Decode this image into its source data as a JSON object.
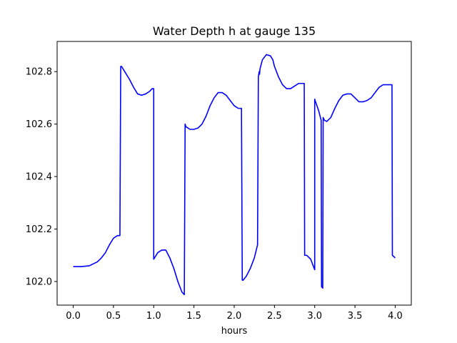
{
  "chart_data": {
    "type": "line",
    "title": "Water Depth h at gauge 135",
    "xlabel": "hours",
    "ylabel": "",
    "xlim": [
      -0.2,
      4.2
    ],
    "ylim": [
      101.91,
      102.915
    ],
    "xticks": [
      0.0,
      0.5,
      1.0,
      1.5,
      2.0,
      2.5,
      3.0,
      3.5,
      4.0
    ],
    "xtick_labels": [
      "0.0",
      "0.5",
      "1.0",
      "1.5",
      "2.0",
      "2.5",
      "3.0",
      "3.5",
      "4.0"
    ],
    "yticks": [
      102.0,
      102.2,
      102.4,
      102.6,
      102.8
    ],
    "ytick_labels": [
      "102.0",
      "102.2",
      "102.4",
      "102.6",
      "102.8"
    ],
    "grid": false,
    "legend": "none",
    "series": [
      {
        "color": "#0000ff",
        "x": [
          0.0,
          0.1,
          0.2,
          0.3,
          0.35,
          0.4,
          0.45,
          0.5,
          0.55,
          0.58,
          0.59,
          0.6,
          0.62,
          0.65,
          0.7,
          0.75,
          0.8,
          0.85,
          0.9,
          0.95,
          0.98,
          1.0,
          1.0,
          1.01,
          1.05,
          1.1,
          1.15,
          1.2,
          1.25,
          1.3,
          1.35,
          1.38,
          1.39,
          1.4,
          1.45,
          1.5,
          1.55,
          1.6,
          1.65,
          1.7,
          1.75,
          1.8,
          1.85,
          1.9,
          1.95,
          2.0,
          2.05,
          2.09,
          2.1,
          2.11,
          2.15,
          2.2,
          2.25,
          2.29,
          2.3,
          2.31,
          2.315,
          2.32,
          2.35,
          2.4,
          2.45,
          2.48,
          2.5,
          2.55,
          2.6,
          2.65,
          2.7,
          2.75,
          2.8,
          2.85,
          2.87,
          2.875,
          2.9,
          2.95,
          3.0,
          3.0,
          3.005,
          3.05,
          3.08,
          3.085,
          3.1,
          3.105,
          3.12,
          3.15,
          3.2,
          3.25,
          3.3,
          3.35,
          3.4,
          3.45,
          3.5,
          3.55,
          3.6,
          3.65,
          3.7,
          3.75,
          3.8,
          3.85,
          3.9,
          3.95,
          3.96,
          3.965,
          4.0
        ],
        "y": [
          102.057,
          102.057,
          102.06,
          102.075,
          102.09,
          102.11,
          102.14,
          102.165,
          102.175,
          102.175,
          102.82,
          102.82,
          102.81,
          102.795,
          102.77,
          102.74,
          102.715,
          102.71,
          102.715,
          102.725,
          102.735,
          102.735,
          102.085,
          102.09,
          102.11,
          102.12,
          102.12,
          102.09,
          102.05,
          102.0,
          101.96,
          101.95,
          102.6,
          102.59,
          102.58,
          102.58,
          102.585,
          102.6,
          102.63,
          102.67,
          102.7,
          102.72,
          102.72,
          102.71,
          102.69,
          102.67,
          102.66,
          102.66,
          102.005,
          102.005,
          102.02,
          102.05,
          102.09,
          102.14,
          102.78,
          102.8,
          102.79,
          102.81,
          102.845,
          102.865,
          102.86,
          102.845,
          102.82,
          102.78,
          102.75,
          102.735,
          102.735,
          102.745,
          102.755,
          102.755,
          102.755,
          102.1,
          102.1,
          102.085,
          102.045,
          102.695,
          102.69,
          102.65,
          102.615,
          101.98,
          101.975,
          102.625,
          102.615,
          102.61,
          102.625,
          102.66,
          102.69,
          102.71,
          102.715,
          102.715,
          102.7,
          102.685,
          102.685,
          102.69,
          102.7,
          102.72,
          102.74,
          102.75,
          102.75,
          102.75,
          102.75,
          102.1,
          102.09
        ]
      }
    ]
  }
}
